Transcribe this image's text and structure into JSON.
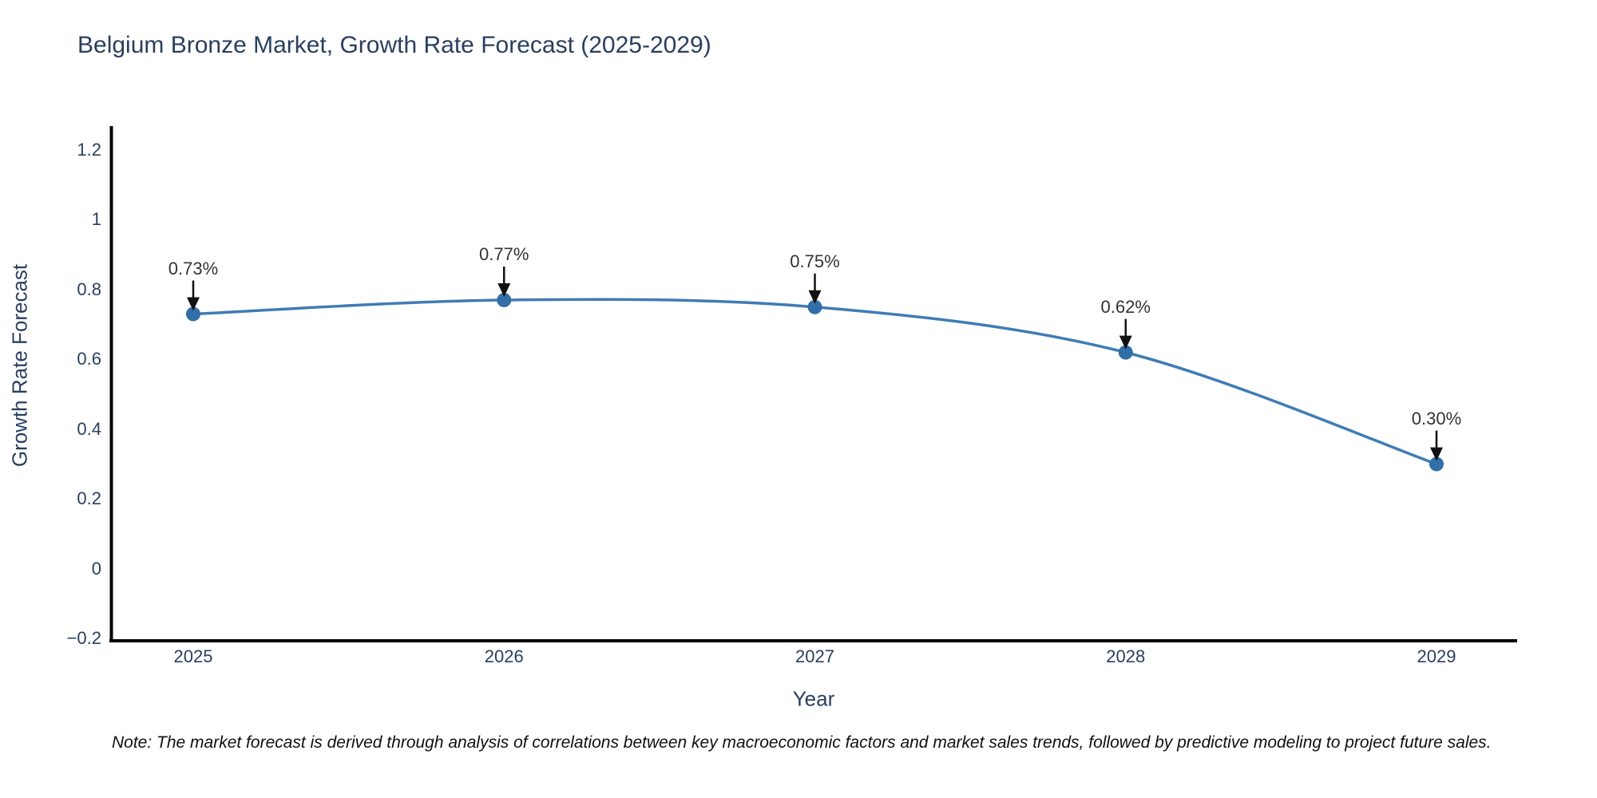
{
  "chart": {
    "title": "Belgium Bronze Market, Growth Rate Forecast (2025-2029)",
    "y_axis_title": "Growth Rate Forecast",
    "x_axis_title": "Year"
  },
  "note": {
    "text": "Note: The market forecast is derived through analysis of correlations between key macroeconomic factors and market sales trends, followed by predictive modeling to project future sales."
  },
  "chart_data": {
    "type": "line",
    "title": "Belgium Bronze Market, Growth Rate Forecast (2025-2029)",
    "xlabel": "Year",
    "ylabel": "Growth Rate Forecast",
    "x": [
      2025,
      2026,
      2027,
      2028,
      2029
    ],
    "y": [
      0.73,
      0.77,
      0.75,
      0.62,
      0.3
    ],
    "point_labels": [
      "0.73%",
      "0.77%",
      "0.75%",
      "0.62%",
      "0.30%"
    ],
    "x_tick_labels": [
      "2025",
      "2026",
      "2027",
      "2028",
      "2029"
    ],
    "y_tick_labels": [
      "1.2",
      "1",
      "0.8",
      "0.6",
      "0.4",
      "0.2",
      "0",
      "−0.2"
    ],
    "y_tick_values": [
      1.2,
      1.0,
      0.8,
      0.6,
      0.4,
      0.2,
      0.0,
      -0.2
    ],
    "ylim": [
      -0.2,
      1.27
    ],
    "grid": false,
    "legend": false,
    "line_shape": "spline",
    "line_color": "#3f7cb5",
    "marker_color": "#316fa6",
    "axis_color": "#000000",
    "annotation_color": "#111111"
  }
}
